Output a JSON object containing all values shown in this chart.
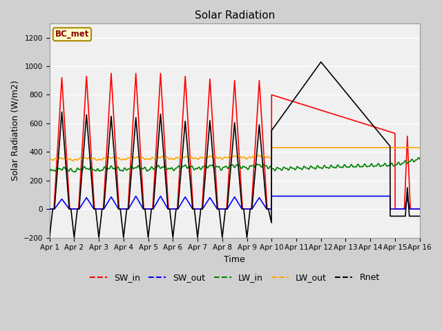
{
  "title": "Solar Radiation",
  "xlabel": "Time",
  "ylabel": "Solar Radiation (W/m2)",
  "ylim": [
    -200,
    1300
  ],
  "xlim": [
    0,
    15
  ],
  "fig_bg_color": "#d0d0d0",
  "plot_bg_color": "#f0f0f0",
  "annotation_text": "BC_met",
  "annotation_color": "#8b0000",
  "annotation_bg": "#ffffcc",
  "x_tick_labels": [
    "Apr 1",
    "Apr 2",
    "Apr 3",
    "Apr 4",
    "Apr 5",
    "Apr 6",
    "Apr 7",
    "Apr 8",
    "Apr 9",
    "Apr 10",
    "Apr 11",
    "Apr 12",
    "Apr 13",
    "Apr 14",
    "Apr 15",
    "Apr 16"
  ],
  "legend_labels": [
    "SW_in",
    "SW_out",
    "LW_in",
    "LW_out",
    "Rnet"
  ],
  "line_colors": [
    "red",
    "blue",
    "green",
    "orange",
    "black"
  ]
}
